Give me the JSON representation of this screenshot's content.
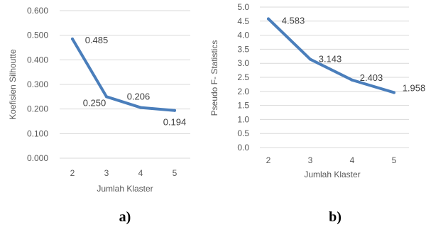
{
  "colors": {
    "line": "#4a7ebb",
    "grid": "#d9d9d9",
    "text": "#595959"
  },
  "chart_data": [
    {
      "type": "line",
      "panel_label": "a)",
      "categories": [
        "2",
        "3",
        "4",
        "5"
      ],
      "values": [
        0.485,
        0.25,
        0.206,
        0.194
      ],
      "data_labels": [
        "0.485",
        "0.250",
        "0.206",
        "0.194"
      ],
      "yticks": [
        "0.000",
        "0.100",
        "0.200",
        "0.300",
        "0.400",
        "0.500",
        "0.600"
      ],
      "ylim": [
        0,
        0.6
      ],
      "xlabel": "Jumlah Klaster",
      "ylabel": "Koefisien Silhoutte",
      "grid": true
    },
    {
      "type": "line",
      "panel_label": "b)",
      "categories": [
        "2",
        "3",
        "4",
        "5"
      ],
      "values": [
        4.583,
        3.143,
        2.403,
        1.958
      ],
      "data_labels": [
        "4.583",
        "3.143",
        "2.403",
        "1.958"
      ],
      "yticks": [
        "0.0",
        "0.5",
        "1.0",
        "1.5",
        "2.0",
        "2.5",
        "3.0",
        "3.5",
        "4.0",
        "4.5",
        "5.0"
      ],
      "ylim": [
        0,
        5
      ],
      "xlabel": "Jumlah Klaster",
      "ylabel": "Pseudo F- Statistics",
      "grid": true
    }
  ]
}
